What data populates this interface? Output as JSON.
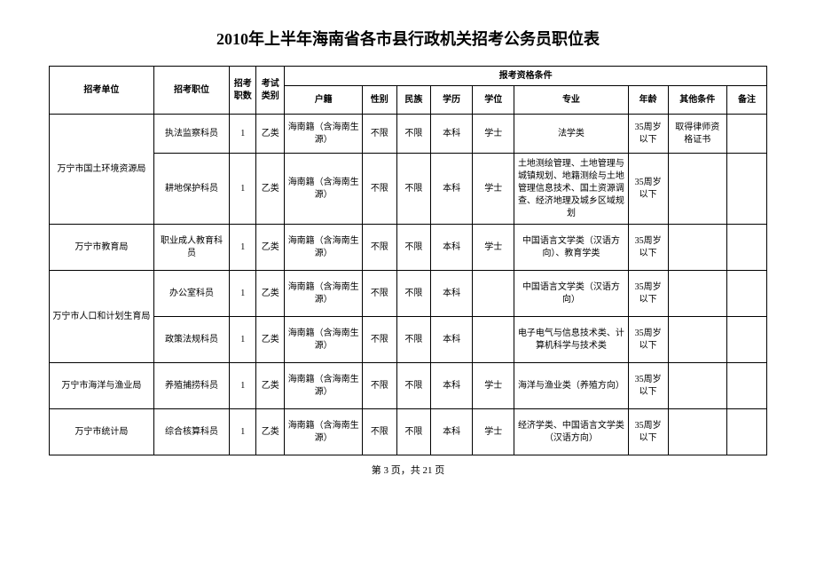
{
  "title": "2010年上半年海南省各市县行政机关招考公务员职位表",
  "headers": {
    "unit": "招考单位",
    "position": "招考职位",
    "count": "招考职数",
    "exam_type": "考试类别",
    "qualifications": "报考资格条件",
    "hukou": "户籍",
    "gender": "性别",
    "ethnicity": "民族",
    "education": "学历",
    "degree": "学位",
    "major": "专业",
    "age": "年龄",
    "other": "其他条件",
    "note": "备注"
  },
  "units": {
    "u1": "万宁市国土环境资源局",
    "u2": "万宁市教育局",
    "u3": "万宁市人口和计划生育局",
    "u4": "万宁市海洋与渔业局",
    "u5": "万宁市统计局"
  },
  "rows": {
    "r1": {
      "position": "执法监察科员",
      "count": "1",
      "exam": "乙类",
      "hukou": "海南籍（含海南生源）",
      "gender": "不限",
      "ethnicity": "不限",
      "education": "本科",
      "degree": "学士",
      "major": "法学类",
      "age": "35周岁以下",
      "other": "取得律师资格证书",
      "note": ""
    },
    "r2": {
      "position": "耕地保护科员",
      "count": "1",
      "exam": "乙类",
      "hukou": "海南籍（含海南生源）",
      "gender": "不限",
      "ethnicity": "不限",
      "education": "本科",
      "degree": "学士",
      "major": "土地测绘管理、土地管理与城镇规划、地籍测绘与土地管理信息技术、国土资源调查、经济地理及城乡区域规划",
      "age": "35周岁以下",
      "other": "",
      "note": ""
    },
    "r3": {
      "position": "职业成人教育科员",
      "count": "1",
      "exam": "乙类",
      "hukou": "海南籍（含海南生源）",
      "gender": "不限",
      "ethnicity": "不限",
      "education": "本科",
      "degree": "学士",
      "major": "中国语言文学类（汉语方向）、教育学类",
      "age": "35周岁以下",
      "other": "",
      "note": ""
    },
    "r4": {
      "position": "办公室科员",
      "count": "1",
      "exam": "乙类",
      "hukou": "海南籍（含海南生源）",
      "gender": "不限",
      "ethnicity": "不限",
      "education": "本科",
      "degree": "",
      "major": "中国语言文学类（汉语方向）",
      "age": "35周岁以下",
      "other": "",
      "note": ""
    },
    "r5": {
      "position": "政策法规科员",
      "count": "1",
      "exam": "乙类",
      "hukou": "海南籍（含海南生源）",
      "gender": "不限",
      "ethnicity": "不限",
      "education": "本科",
      "degree": "",
      "major": "电子电气与信息技术类、计算机科学与技术类",
      "age": "35周岁以下",
      "other": "",
      "note": ""
    },
    "r6": {
      "position": "养殖捕捞科员",
      "count": "1",
      "exam": "乙类",
      "hukou": "海南籍（含海南生源）",
      "gender": "不限",
      "ethnicity": "不限",
      "education": "本科",
      "degree": "学士",
      "major": "海洋与渔业类（养殖方向）",
      "age": "35周岁以下",
      "other": "",
      "note": ""
    },
    "r7": {
      "position": "综合核算科员",
      "count": "1",
      "exam": "乙类",
      "hukou": "海南籍（含海南生源）",
      "gender": "不限",
      "ethnicity": "不限",
      "education": "本科",
      "degree": "学士",
      "major": "经济学类、中国语言文学类（汉语方向）",
      "age": "35周岁以下",
      "other": "",
      "note": ""
    }
  },
  "footer": "第 3 页，共 21 页"
}
